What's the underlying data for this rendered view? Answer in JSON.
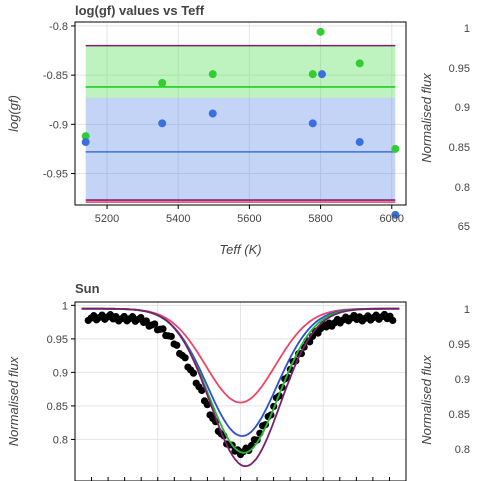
{
  "chart_data": [
    {
      "type": "scatter",
      "title": "log(gf) values vs Teff",
      "xlabel": "Teff (K)",
      "ylabel": "log(gf)",
      "xlim": [
        5110,
        6040
      ],
      "ylim": [
        -0.982,
        -0.796
      ],
      "xticks": [
        "5200",
        "5400",
        "5600",
        "5800",
        "6000"
      ],
      "xtick_values": [
        5200,
        5400,
        5600,
        5800,
        6000
      ],
      "yticks": [
        "-0.8",
        "-0.85",
        "-0.9",
        "-0.95"
      ],
      "ytick_values": [
        -0.8,
        -0.85,
        -0.9,
        -0.95
      ],
      "grid": true,
      "bands": [
        {
          "color": "#55dd55",
          "opacity": 0.38,
          "lo": -0.873,
          "hi": -0.82
        },
        {
          "color": "#3a6fe0",
          "opacity": 0.3,
          "lo": -0.977,
          "hi": -0.873
        }
      ],
      "hlines": [
        {
          "color": "#7a1f70",
          "y": -0.82
        },
        {
          "color": "#22cc22",
          "y": -0.862
        },
        {
          "color": "#3a6fe0",
          "y": -0.928
        },
        {
          "color": "#7a1f70",
          "y": -0.977
        },
        {
          "color": "#ee4466",
          "y": -0.979
        }
      ],
      "series": [
        {
          "color": "#33cc33",
          "x": [
            5140,
            5355,
            5497,
            5778,
            5800,
            5910,
            6010
          ],
          "y": [
            -0.912,
            -0.858,
            -0.849,
            -0.849,
            -0.806,
            -0.838,
            -0.925
          ]
        },
        {
          "color": "#3a6fe0",
          "x": [
            5140,
            5355,
            5497,
            5778,
            5804,
            5910,
            6010
          ],
          "y": [
            -0.918,
            -0.899,
            -0.889,
            -0.899,
            -0.849,
            -0.918,
            -0.992
          ]
        }
      ]
    },
    {
      "type": "line",
      "title": "Sun",
      "xlabel": "",
      "ylabel": "Normalised flux",
      "xlim": [
        -1,
        1
      ],
      "ylim": [
        0.738,
        1.005
      ],
      "yticks": [
        "1",
        "0.95",
        "0.9",
        "0.85",
        "0.8"
      ],
      "ytick_values": [
        1,
        0.95,
        0.9,
        0.85,
        0.8
      ],
      "grid": true,
      "observed": {
        "color": "#000000",
        "continuum": 0.982,
        "depth": 0.2,
        "width": 0.22
      },
      "series": [
        {
          "color": "#ee4466",
          "depth": 0.14
        },
        {
          "color": "#2a50d0",
          "depth": 0.19
        },
        {
          "color": "#22bb33",
          "depth": 0.215
        },
        {
          "color": "#7a1f70",
          "depth": 0.235
        }
      ],
      "continuum": 0.995,
      "width": 0.21
    },
    {
      "type": "line",
      "partial": true,
      "ylabel": "Normalised flux",
      "yticks": [
        "1",
        "0.95",
        "0.9",
        "0.85",
        "0.8",
        "65"
      ],
      "panel": "top-right"
    },
    {
      "type": "line",
      "partial": true,
      "ylabel": "Normalised flux",
      "yticks": [
        "1",
        "0.95",
        "0.9",
        "0.85",
        "0.8"
      ],
      "panel": "bottom-right"
    }
  ]
}
